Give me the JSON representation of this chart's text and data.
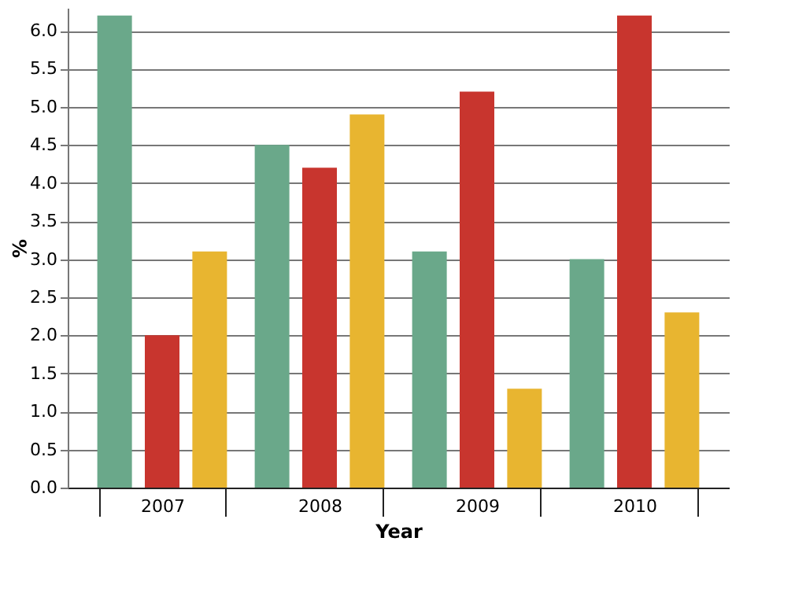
{
  "chart_data": {
    "type": "bar",
    "xlabel": "Year",
    "ylabel": "%",
    "categories": [
      "2007",
      "2008",
      "2009",
      "2010"
    ],
    "series": [
      {
        "color": "#6aa88a",
        "values": [
          6.2,
          4.5,
          3.1,
          3.0
        ]
      },
      {
        "color": "#c8352e",
        "values": [
          2.0,
          4.2,
          5.2,
          6.2
        ]
      },
      {
        "color": "#e8b530",
        "values": [
          3.1,
          4.9,
          1.3,
          2.3
        ]
      }
    ],
    "ylim": [
      0,
      6.3
    ],
    "yticks": [
      {
        "value": 0,
        "label": "0.0"
      },
      0.5,
      {
        "value": 1,
        "label": "1.0"
      },
      1.5,
      {
        "value": 2,
        "label": "2.0"
      },
      2.5,
      {
        "value": 3,
        "label": "3.0"
      },
      3.5,
      {
        "value": 4,
        "label": "4.0"
      },
      4.5,
      {
        "value": 5,
        "label": "5.0"
      },
      5.5,
      {
        "value": 6,
        "label": "6.0"
      }
    ],
    "grid": "y",
    "legend": false
  }
}
